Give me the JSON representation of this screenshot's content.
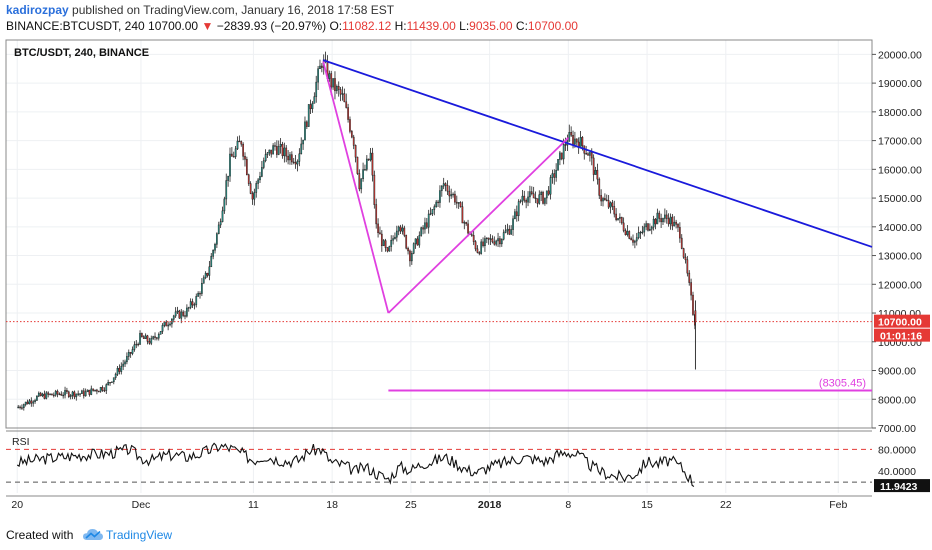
{
  "header": {
    "username": "kadirozpay",
    "published_text": "published on TradingView.com, January 16, 2018 17:58 EST",
    "symbol_line": "BINANCE:BTCUSDT, 240",
    "last_price": "10700.00",
    "change": "−2839.93 (−20.97%)",
    "o_label": "O:",
    "o_value": "11082.12",
    "h_label": "H:",
    "h_value": "11439.00",
    "l_label": "L:",
    "l_value": "9035.00",
    "c_label": "C:",
    "c_value": "10700.00"
  },
  "footer": {
    "created_with": "Created with",
    "brand": "TradingView"
  },
  "colors": {
    "up": "#26a69a",
    "down": "#e53935",
    "candle_outline": "#222222",
    "trendline": "#1a1adb",
    "pattern": "#e040e0",
    "price_line": "#e53935",
    "rsi_line": "#111111",
    "rsi_upper": "#e53935",
    "rsi_lower": "#555555"
  },
  "chart_data": {
    "type": "candlestick",
    "title": "BTC/USDT, 240, BINANCE",
    "y_axis": {
      "range": [
        7000,
        20500
      ],
      "ticks": [
        "20000.00",
        "19000.00",
        "18000.00",
        "17000.00",
        "16000.00",
        "15000.00",
        "14000.00",
        "13000.00",
        "12000.00",
        "11000.00",
        "10000.00",
        "9000.00",
        "8000.00",
        "7000.00"
      ]
    },
    "x_axis": {
      "ticks": [
        {
          "label": "20",
          "day": 0
        },
        {
          "label": "Dec",
          "day": 11
        },
        {
          "label": "11",
          "day": 21
        },
        {
          "label": "18",
          "day": 28
        },
        {
          "label": "25",
          "day": 35
        },
        {
          "label": "2018",
          "day": 42
        },
        {
          "label": "8",
          "day": 49
        },
        {
          "label": "15",
          "day": 56
        },
        {
          "label": "22",
          "day": 63
        },
        {
          "label": "Feb",
          "day": 73
        }
      ],
      "range_days": [
        -1,
        76
      ]
    },
    "price_path": [
      [
        0,
        7700
      ],
      [
        2,
        8100
      ],
      [
        4,
        8200
      ],
      [
        6,
        8200
      ],
      [
        8,
        8450
      ],
      [
        10,
        9500
      ],
      [
        11,
        10150
      ],
      [
        12,
        10000
      ],
      [
        13,
        10500
      ],
      [
        14,
        10900
      ],
      [
        15,
        11000
      ],
      [
        16,
        11500
      ],
      [
        17,
        12400
      ],
      [
        18,
        14000
      ],
      [
        19,
        16300
      ],
      [
        20,
        17000
      ],
      [
        21,
        15000
      ],
      [
        22,
        16300
      ],
      [
        23,
        16800
      ],
      [
        24,
        16500
      ],
      [
        25,
        16400
      ],
      [
        26,
        18000
      ],
      [
        26.6,
        18900
      ],
      [
        27.2,
        19800
      ],
      [
        28,
        19000
      ],
      [
        29,
        18500
      ],
      [
        30,
        17000
      ],
      [
        30.5,
        15500
      ],
      [
        31.5,
        16500
      ],
      [
        32,
        14000
      ],
      [
        33,
        13000
      ],
      [
        34,
        14200
      ],
      [
        35,
        13000
      ],
      [
        36,
        13800
      ],
      [
        37,
        14500
      ],
      [
        38,
        15500
      ],
      [
        39,
        15000
      ],
      [
        40,
        14000
      ],
      [
        41,
        13200
      ],
      [
        42,
        13500
      ],
      [
        43,
        13600
      ],
      [
        44,
        14000
      ],
      [
        45,
        15100
      ],
      [
        46,
        15000
      ],
      [
        47,
        15000
      ],
      [
        48,
        16000
      ],
      [
        49,
        17100
      ],
      [
        50,
        17000
      ],
      [
        51,
        16500
      ],
      [
        52,
        15000
      ],
      [
        53,
        14600
      ],
      [
        54,
        14000
      ],
      [
        55,
        13500
      ],
      [
        56,
        14000
      ],
      [
        57,
        14300
      ],
      [
        58,
        14300
      ],
      [
        59,
        13800
      ],
      [
        59.8,
        12000
      ],
      [
        60.3,
        10700
      ]
    ],
    "last_candle": {
      "day": 60.3,
      "open": 11082.12,
      "high": 11439.0,
      "low": 9035.0,
      "close": 10700.0
    },
    "annotations": {
      "trendline": [
        [
          27.2,
          19800
        ],
        [
          76,
          13300
        ]
      ],
      "pattern_lines": [
        [
          [
            27.2,
            19750
          ],
          [
            33,
            11000
          ]
        ],
        [
          [
            33,
            11000
          ],
          [
            49,
            17100
          ]
        ]
      ],
      "target_line": {
        "from_day": 33,
        "value": 8305.45,
        "label": "(8305.45)"
      },
      "last_price_label": "10700.00",
      "countdown_label": "01:01:16"
    },
    "rsi": {
      "label": "RSI",
      "ticks": [
        "80.0000",
        "40.0000"
      ],
      "range": [
        0,
        110
      ],
      "upper_band": 80,
      "lower_band": 20,
      "current_label": "11.9423",
      "path": [
        [
          0,
          55
        ],
        [
          2,
          62
        ],
        [
          4,
          66
        ],
        [
          6,
          70
        ],
        [
          8,
          72
        ],
        [
          10,
          80
        ],
        [
          11,
          64
        ],
        [
          12,
          60
        ],
        [
          13,
          68
        ],
        [
          14,
          70
        ],
        [
          15,
          66
        ],
        [
          16,
          70
        ],
        [
          17,
          78
        ],
        [
          18,
          86
        ],
        [
          19,
          82
        ],
        [
          20,
          72
        ],
        [
          21,
          60
        ],
        [
          22,
          68
        ],
        [
          23,
          62
        ],
        [
          24,
          58
        ],
        [
          25,
          60
        ],
        [
          26,
          78
        ],
        [
          27,
          80
        ],
        [
          28,
          55
        ],
        [
          29,
          52
        ],
        [
          30,
          40
        ],
        [
          31,
          48
        ],
        [
          32,
          35
        ],
        [
          33,
          25
        ],
        [
          34,
          48
        ],
        [
          35,
          42
        ],
        [
          36,
          54
        ],
        [
          37,
          58
        ],
        [
          38,
          66
        ],
        [
          39,
          55
        ],
        [
          40,
          42
        ],
        [
          41,
          38
        ],
        [
          42,
          48
        ],
        [
          43,
          54
        ],
        [
          44,
          60
        ],
        [
          45,
          65
        ],
        [
          46,
          62
        ],
        [
          47,
          58
        ],
        [
          48,
          70
        ],
        [
          49,
          75
        ],
        [
          50,
          68
        ],
        [
          51,
          50
        ],
        [
          52,
          38
        ],
        [
          53,
          32
        ],
        [
          54,
          28
        ],
        [
          55,
          36
        ],
        [
          56,
          58
        ],
        [
          57,
          54
        ],
        [
          58,
          60
        ],
        [
          59,
          48
        ],
        [
          59.8,
          28
        ],
        [
          60.3,
          12
        ]
      ]
    }
  }
}
